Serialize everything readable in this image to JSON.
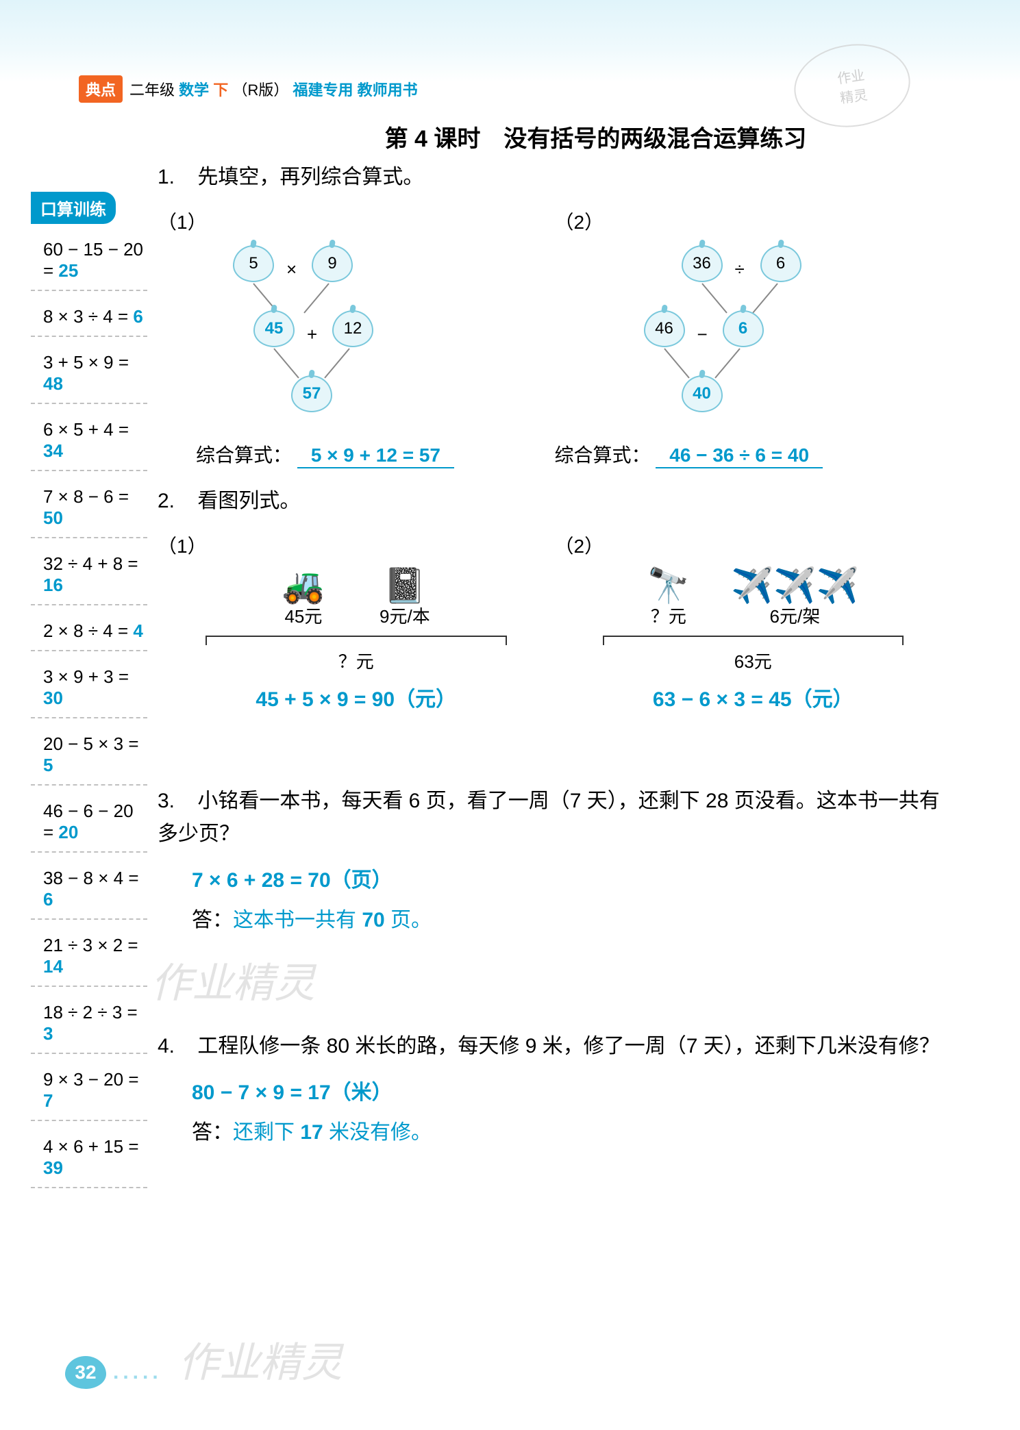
{
  "header": {
    "logo": "典点",
    "grade": "二年级",
    "subject": "数学",
    "vol": "下",
    "edition": "（R版）",
    "region": "福建专用",
    "book_type": "教师用书"
  },
  "stamp": {
    "line1": "作业",
    "line2": "精灵"
  },
  "title": "第 4 课时　没有括号的两级混合运算练习",
  "sidebar": {
    "title": "口算训练",
    "items": [
      {
        "expr": "60 − 15 − 20 =",
        "ans": "25"
      },
      {
        "expr": "8 × 3 ÷ 4 =",
        "ans": "6"
      },
      {
        "expr": "3 + 5 × 9 =",
        "ans": "48"
      },
      {
        "expr": "6 × 5 + 4 =",
        "ans": "34"
      },
      {
        "expr": "7 × 8 − 6 =",
        "ans": "50"
      },
      {
        "expr": "32 ÷ 4 + 8 =",
        "ans": "16"
      },
      {
        "expr": "2 × 8 ÷ 4 =",
        "ans": "4"
      },
      {
        "expr": "3 × 9 + 3 =",
        "ans": "30"
      },
      {
        "expr": "20 − 5 × 3 =",
        "ans": "5"
      },
      {
        "expr": "46 − 6 − 20 =",
        "ans": "20"
      },
      {
        "expr": "38 − 8 × 4 =",
        "ans": "6"
      },
      {
        "expr": "21 ÷ 3 × 2 =",
        "ans": "14"
      },
      {
        "expr": "18 ÷ 2 ÷ 3 =",
        "ans": "3"
      },
      {
        "expr": "9 × 3 − 20 =",
        "ans": "7"
      },
      {
        "expr": "4 × 6 + 15 =",
        "ans": "39"
      }
    ]
  },
  "q1": {
    "num": "1.",
    "text": "先填空，再列综合算式。",
    "sub1": {
      "label": "（1）",
      "top_l": "5",
      "top_op": "×",
      "top_r": "9",
      "mid_l": "45",
      "mid_op": "+",
      "mid_r": "12",
      "bot": "57",
      "formula_label": "综合算式：",
      "formula_ans": "5 × 9 + 12 = 57"
    },
    "sub2": {
      "label": "（2）",
      "top_l": "36",
      "top_op": "÷",
      "top_r": "6",
      "mid_l": "46",
      "mid_op": "−",
      "mid_r": "6",
      "bot": "40",
      "formula_label": "综合算式：",
      "formula_ans": "46 − 36 ÷ 6 = 40"
    }
  },
  "q2": {
    "num": "2.",
    "text": "看图列式。",
    "sub1": {
      "label": "（1）",
      "item1_price": "45元",
      "item2_price": "9元/本",
      "bracket": "？元",
      "answer": "45 + 5 × 9 = 90（元）"
    },
    "sub2": {
      "label": "（2）",
      "item1_price": "？元",
      "item2_price": "6元/架",
      "bracket": "63元",
      "answer": "63 − 6 × 3 = 45（元）"
    }
  },
  "q3": {
    "num": "3.",
    "text": "小铭看一本书，每天看 6 页，看了一周（7 天），还剩下 28 页没看。这本书一共有多少页？",
    "calc": "7 × 6 + 28 = 70（页）",
    "ans_label": "答：",
    "ans_pre": "这本书一共有 ",
    "ans_val": "70",
    "ans_suf": " 页。"
  },
  "q4": {
    "num": "4.",
    "text": "工程队修一条 80 米长的路，每天修 9 米，修了一周（7 天），还剩下几米没有修？",
    "calc": "80 − 7 × 9 = 17（米）",
    "ans_label": "答：",
    "ans_pre": "还剩下 ",
    "ans_val": "17",
    "ans_suf": " 米没有修。"
  },
  "watermark": "作业精灵",
  "page_num": "32",
  "colors": {
    "accent": "#0099cc",
    "orange": "#f26522",
    "apple_border": "#7ac8dc",
    "apple_fill": "#e6f6fa",
    "bg_top": "#e0f4fa"
  }
}
